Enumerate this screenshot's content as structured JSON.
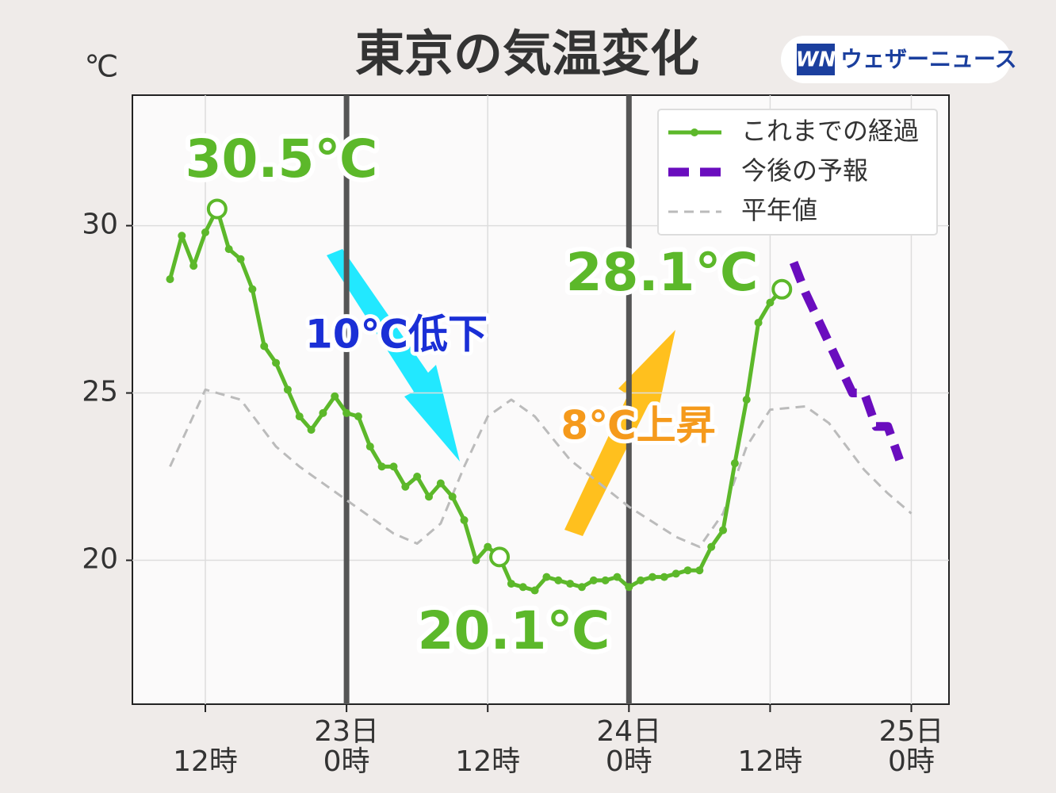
{
  "chart_data": {
    "type": "line",
    "title": "東京の気温変化",
    "y_label": "℃",
    "brand": {
      "mark": "WN",
      "name": "ウェザーニュース"
    },
    "xlim": [
      5.8,
      75.2
    ],
    "ylim": [
      15.7,
      33.9
    ],
    "yticks": [
      20,
      25,
      30
    ],
    "xticks": [
      {
        "value": 12,
        "label": "12時"
      },
      {
        "value": 24,
        "label": "0時"
      },
      {
        "value": 36,
        "label": "12時"
      },
      {
        "value": 48,
        "label": "0時"
      },
      {
        "value": 60,
        "label": "12時"
      },
      {
        "value": 72,
        "label": "0時"
      }
    ],
    "x_date_labels": [
      {
        "value": 24,
        "label": "23日"
      },
      {
        "value": 48,
        "label": "24日"
      },
      {
        "value": 72,
        "label": "25日"
      }
    ],
    "day_lines": [
      24,
      48
    ],
    "grid": true,
    "legend": "upper right",
    "series": [
      {
        "name": "これまでの経過",
        "color": "#5cb82a",
        "style": "solid-markers",
        "x": [
          9,
          10,
          11,
          12,
          13,
          14,
          15,
          16,
          17,
          18,
          19,
          20,
          21,
          22,
          23,
          24,
          25,
          26,
          27,
          28,
          29,
          30,
          31,
          32,
          33,
          34,
          35,
          36,
          37,
          38,
          39,
          40,
          41,
          42,
          43,
          44,
          45,
          46,
          47,
          48,
          49,
          50,
          51,
          52,
          53,
          54,
          55,
          56,
          57,
          58,
          59,
          60,
          61
        ],
        "values": [
          28.4,
          29.7,
          28.8,
          29.8,
          30.5,
          29.3,
          29.0,
          28.1,
          26.4,
          25.9,
          25.1,
          24.3,
          23.9,
          24.4,
          24.9,
          24.4,
          24.3,
          23.4,
          22.8,
          22.8,
          22.2,
          22.5,
          21.9,
          22.3,
          21.9,
          21.2,
          20.0,
          20.4,
          20.1,
          19.3,
          19.2,
          19.1,
          19.5,
          19.4,
          19.3,
          19.2,
          19.4,
          19.4,
          19.5,
          19.2,
          19.4,
          19.5,
          19.5,
          19.6,
          19.7,
          19.7,
          20.4,
          20.9,
          22.9,
          24.8,
          27.1,
          27.7,
          28.1
        ]
      },
      {
        "name": "今後の予報",
        "color": "#6a0dbe",
        "style": "dashed-thick",
        "x": [
          62,
          63,
          67,
          68,
          69,
          70,
          71
        ],
        "values": [
          28.9,
          28.0,
          25.0,
          25.0,
          24.0,
          24.0,
          23.0
        ]
      },
      {
        "name": "平年値",
        "color": "#bbbbbb",
        "style": "dashed-thin",
        "x": [
          9,
          12,
          15,
          18,
          20,
          24,
          28,
          30,
          32,
          34,
          36,
          38,
          40,
          43,
          48,
          52,
          54,
          56,
          58,
          60,
          63,
          65,
          68,
          70,
          72
        ],
        "values": [
          22.8,
          25.1,
          24.8,
          23.4,
          22.8,
          21.8,
          20.8,
          20.5,
          21.1,
          22.8,
          24.3,
          24.8,
          24.3,
          23.0,
          21.6,
          20.7,
          20.4,
          21.4,
          23.4,
          24.5,
          24.6,
          24.1,
          22.7,
          22.0,
          21.4
        ]
      }
    ],
    "highlights": [
      {
        "series": 0,
        "index": 4,
        "text": "30.5℃"
      },
      {
        "series": 0,
        "index": 28,
        "text": "20.1℃"
      },
      {
        "series": 0,
        "index": 52,
        "text": "28.1℃"
      }
    ],
    "annotations": [
      {
        "text": "10℃低下",
        "color": "#1a2fd6"
      },
      {
        "text": "8℃上昇",
        "color": "#f59a1c"
      }
    ]
  }
}
